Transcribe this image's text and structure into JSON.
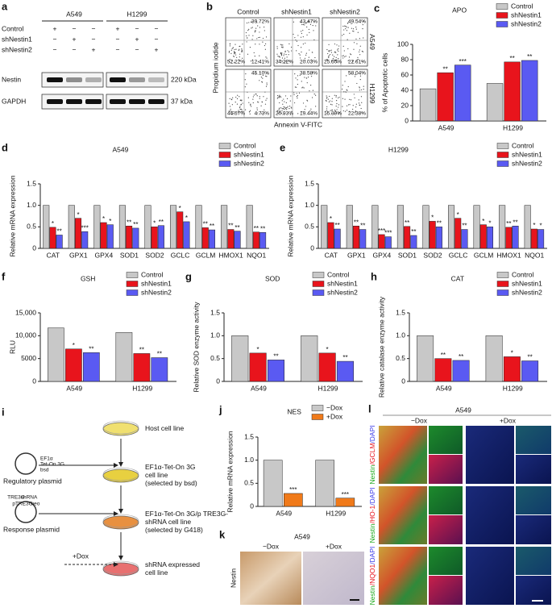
{
  "chart_data": [
    {
      "type": "bar",
      "label": "c",
      "title": "APO",
      "ylabel": "% of Apoptotic cells",
      "categories": [
        "A549",
        "H1299"
      ],
      "ylim": [
        0,
        100
      ],
      "yticks": [
        0,
        20,
        40,
        60,
        80,
        100
      ],
      "legend": "upper right",
      "series": [
        {
          "name": "Control",
          "color": "#c8c8c8",
          "values": [
            42,
            49
          ]
        },
        {
          "name": "shNestin1",
          "color": "#e8141c",
          "values": [
            63,
            77
          ],
          "stars": [
            "**",
            "**"
          ]
        },
        {
          "name": "shNestin2",
          "color": "#5a5af2",
          "values": [
            73,
            79
          ],
          "stars": [
            "***",
            "**"
          ]
        }
      ]
    },
    {
      "type": "bar",
      "label": "d",
      "title": "A549",
      "ylabel": "Relative mRNA expression",
      "categories": [
        "CAT",
        "GPX1",
        "GPX4",
        "SOD1",
        "SOD2",
        "GCLC",
        "GCLM",
        "HMOX1",
        "NQO1"
      ],
      "ylim": [
        0,
        1.5
      ],
      "yticks": [
        0,
        0.5,
        {
          "value": 1,
          "label": "1.0"
        },
        1.5
      ],
      "legend": "upper right",
      "series": [
        {
          "name": "Control",
          "color": "#c8c8c8",
          "values": [
            1,
            1,
            1,
            1,
            1,
            1,
            1,
            1,
            1
          ]
        },
        {
          "name": "shNestin1",
          "color": "#e8141c",
          "values": [
            0.49,
            0.7,
            0.6,
            0.52,
            0.5,
            0.85,
            0.48,
            0.44,
            0.38
          ],
          "stars": [
            "*",
            "*",
            "*",
            "**",
            "*",
            "*",
            "**",
            "**",
            "**"
          ]
        },
        {
          "name": "shNestin2",
          "color": "#5a5af2",
          "values": [
            0.31,
            0.39,
            0.55,
            0.47,
            0.53,
            0.62,
            0.43,
            0.4,
            0.37
          ],
          "stars": [
            "**",
            "***",
            "*",
            "**",
            "**",
            "*",
            "**",
            "**",
            "**"
          ]
        }
      ]
    },
    {
      "type": "bar",
      "label": "e",
      "title": "H1299",
      "ylabel": "Relative mRNA expression",
      "categories": [
        "CAT",
        "GPX1",
        "GPX4",
        "SOD1",
        "SOD2",
        "GCLC",
        "GCLM",
        "HMOX1",
        "NQO1"
      ],
      "ylim": [
        0,
        1.5
      ],
      "yticks": [
        0,
        0.5,
        {
          "value": 1,
          "label": "1.0"
        },
        1.5
      ],
      "legend": "upper right",
      "series": [
        {
          "name": "Control",
          "color": "#c8c8c8",
          "values": [
            1,
            1,
            1,
            1,
            1,
            1,
            1,
            1,
            1
          ]
        },
        {
          "name": "shNestin1",
          "color": "#e8141c",
          "values": [
            0.6,
            0.52,
            0.32,
            0.51,
            0.63,
            0.7,
            0.55,
            0.49,
            0.45
          ],
          "stars": [
            "*",
            "**",
            "***",
            "**",
            "*",
            "*",
            "*",
            "**",
            "*"
          ]
        },
        {
          "name": "shNestin2",
          "color": "#5a5af2",
          "values": [
            0.45,
            0.44,
            0.27,
            0.3,
            0.5,
            0.44,
            0.5,
            0.52,
            0.44
          ],
          "stars": [
            "**",
            "**",
            "***",
            "**",
            "**",
            "**",
            "*",
            "**",
            "*"
          ]
        }
      ]
    },
    {
      "type": "bar",
      "label": "f",
      "title": "GSH",
      "ylabel": "RLU",
      "categories": [
        "A549",
        "H1299"
      ],
      "ylim": [
        0,
        15000
      ],
      "yticks": [
        0,
        5000,
        {
          "value": 10000,
          "label": "10,000"
        },
        {
          "value": 15000,
          "label": "15,000"
        }
      ],
      "legend": "upper right",
      "series": [
        {
          "name": "Control",
          "color": "#c8c8c8",
          "values": [
            11700,
            10700
          ]
        },
        {
          "name": "shNestin1",
          "color": "#e8141c",
          "values": [
            7100,
            6100
          ],
          "stars": [
            "*",
            "**"
          ]
        },
        {
          "name": "shNestin2",
          "color": "#5a5af2",
          "values": [
            6300,
            5200
          ],
          "stars": [
            "**",
            "**"
          ]
        }
      ]
    },
    {
      "type": "bar",
      "label": "g",
      "title": "SOD",
      "ylabel": "Relative SOD enzyme activity",
      "categories": [
        "A549",
        "H1299"
      ],
      "ylim": [
        0,
        1.5
      ],
      "yticks": [
        0,
        0.5,
        {
          "value": 1,
          "label": "1.0"
        },
        1.5
      ],
      "legend": "upper right",
      "series": [
        {
          "name": "Control",
          "color": "#c8c8c8",
          "values": [
            1,
            1
          ]
        },
        {
          "name": "shNestin1",
          "color": "#e8141c",
          "values": [
            0.62,
            0.62
          ],
          "stars": [
            "*",
            "*"
          ]
        },
        {
          "name": "shNestin2",
          "color": "#5a5af2",
          "values": [
            0.47,
            0.44
          ],
          "stars": [
            "**",
            "**"
          ]
        }
      ]
    },
    {
      "type": "bar",
      "label": "h",
      "title": "CAT",
      "ylabel": "Relative catalase enzyme activity",
      "categories": [
        "A549",
        "H1299"
      ],
      "ylim": [
        0,
        1.5
      ],
      "yticks": [
        0,
        0.5,
        {
          "value": 1,
          "label": "1.0"
        },
        1.5
      ],
      "legend": "upper right",
      "series": [
        {
          "name": "Control",
          "color": "#c8c8c8",
          "values": [
            1,
            1
          ]
        },
        {
          "name": "shNestin1",
          "color": "#e8141c",
          "values": [
            0.5,
            0.54
          ],
          "stars": [
            "**",
            "*"
          ]
        },
        {
          "name": "shNestin2",
          "color": "#5a5af2",
          "values": [
            0.46,
            0.45
          ],
          "stars": [
            "**",
            "**"
          ]
        }
      ]
    },
    {
      "type": "bar",
      "label": "j",
      "title": "NES",
      "ylabel": "Relative mRNA expression",
      "categories": [
        "A549",
        "H1299"
      ],
      "ylim": [
        0,
        1.5
      ],
      "yticks": [
        0,
        0.5,
        {
          "value": 1,
          "label": "1.0"
        },
        1.5
      ],
      "legend": "upper right",
      "series": [
        {
          "name": "−Dox",
          "color": "#c8c8c8",
          "values": [
            1,
            1
          ]
        },
        {
          "name": "+Dox",
          "color": "#f07a1a",
          "values": [
            0.28,
            0.18
          ],
          "stars": [
            "***",
            "***"
          ]
        }
      ]
    }
  ],
  "panel_a": {
    "label": "a",
    "cell_lines": [
      "A549",
      "H1299"
    ],
    "rows": [
      "Control",
      "shNestin1",
      "shNestin2"
    ],
    "marks": [
      [
        "+",
        "−",
        "−",
        "+",
        "−",
        "−"
      ],
      [
        "−",
        "+",
        "−",
        "−",
        "+",
        "−"
      ],
      [
        "−",
        "−",
        "+",
        "−",
        "−",
        "+"
      ]
    ],
    "proteins": [
      "Nestin",
      "GAPDH"
    ],
    "sizes": [
      "220 kDa",
      "37 kDa"
    ]
  },
  "panel_b": {
    "label": "b",
    "columns": [
      "Control",
      "shNestin1",
      "shNestin2"
    ],
    "rows": [
      "A549",
      "H1299"
    ],
    "ylabel": "Propidium iodide",
    "xlabel": "Annexin V-FITC",
    "quadrants": [
      [
        [
          "39.72%",
          "52.22%",
          "12.41%"
        ],
        [
          "43.47%",
          "34.22%",
          "20.03%"
        ],
        [
          "49.54%",
          "25.60%",
          "22.61%"
        ]
      ],
      [
        [
          "45.10%",
          "44.67%",
          "4.73%"
        ],
        [
          "38.58%",
          "20.93%",
          "19.44%"
        ],
        [
          "58.04%",
          "15.39%",
          "22.38%"
        ]
      ]
    ]
  },
  "panel_i": {
    "label": "i",
    "steps": [
      [
        "Host cell line"
      ],
      [
        "EF1α-Tet-On 3G",
        "cell line",
        "(selected by bsd)"
      ],
      [
        "EF1α-Tet-On 3G/p TRE3G-",
        "shRNA cell line",
        "(selected by G418)"
      ],
      [
        "shRNA expressed",
        "cell line"
      ]
    ],
    "plasmids": [
      "Regulatory plasmid",
      "Response plasmid"
    ],
    "plasmid_parts": [
      [
        "EF1α",
        "Tet-On 3G",
        "bsd"
      ],
      [
        "TRE3G",
        "pTRE3G",
        "shRNA",
        "neo"
      ]
    ],
    "dox": "+Dox"
  },
  "panel_k": {
    "label": "k",
    "title": "A549",
    "columns": [
      "−Dox",
      "+Dox"
    ],
    "row": "Nestin"
  },
  "panel_l": {
    "label": "l",
    "title": "A549",
    "columns": [
      "−Dox",
      "+Dox"
    ],
    "rows": [
      [
        "Nestin",
        "/GCLM",
        "/DAPI"
      ],
      [
        "Nestin",
        "/HO-1",
        "/DAPI"
      ],
      [
        "Nestin",
        "/NQO1",
        "/DAPI"
      ]
    ],
    "part_colors": [
      "#1aa81a",
      "#e8141c",
      "#3a3ae8"
    ]
  }
}
